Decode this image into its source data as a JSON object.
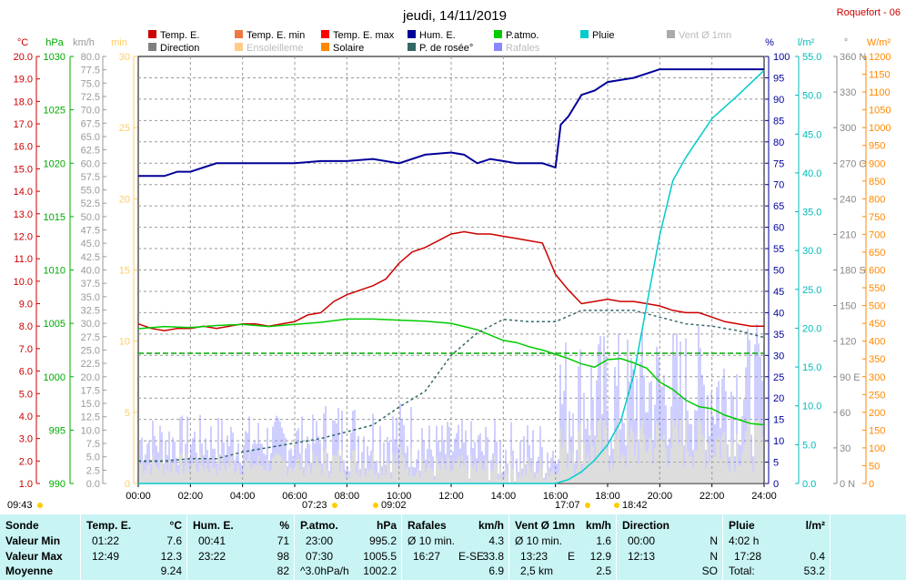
{
  "header": {
    "title": "jeudi, 14/11/2019",
    "station": "Roquefort - 06"
  },
  "legend": [
    {
      "label": "Temp. E.",
      "color": "#cc0000",
      "active": true
    },
    {
      "label": "Direction",
      "color": "#808080",
      "active": true
    },
    {
      "label": "Temp. E. min",
      "color": "#ee7744",
      "active": true
    },
    {
      "label": "Ensoleilleme",
      "color": "#ffcc88",
      "active": false
    },
    {
      "label": "Temp. E. max",
      "color": "#ff0000",
      "active": true
    },
    {
      "label": "Solaire",
      "color": "#ff8800",
      "active": true
    },
    {
      "label": "Hum. E.",
      "color": "#000099",
      "active": true
    },
    {
      "label": "P. de rosée°",
      "color": "#336666",
      "active": true
    },
    {
      "label": "P.atmo.",
      "color": "#00cc00",
      "active": true
    },
    {
      "label": "Rafales",
      "color": "#8888ff",
      "active": false
    },
    {
      "label": "Pluie",
      "color": "#00cccc",
      "active": true
    },
    {
      "label": "Vent Ø 1mn",
      "color": "#aaaaaa",
      "active": false
    }
  ],
  "axis_units": {
    "temp": "°C",
    "press": "hPa",
    "wind": "km/h",
    "sun": "min",
    "hum": "%",
    "rain": "l/m²",
    "dir": "°",
    "solar": "W/m²"
  },
  "chart_data": {
    "type": "line",
    "x_axis": {
      "ticks": [
        "00:00",
        "02:00",
        "04:00",
        "06:00",
        "08:00",
        "10:00",
        "12:00",
        "14:00",
        "16:00",
        "18:00",
        "20:00",
        "22:00",
        "24:00"
      ]
    },
    "y_axes": {
      "temp": {
        "ticks": [
          "1.0",
          "2.0",
          "3.0",
          "4.0",
          "5.0",
          "6.0",
          "7.0",
          "8.0",
          "9.0",
          "10.0",
          "11.0",
          "12.0",
          "13.0",
          "14.0",
          "15.0",
          "16.0",
          "17.0",
          "18.0",
          "19.0",
          "20.0"
        ],
        "range": [
          1,
          20
        ]
      },
      "press": {
        "ticks": [
          "990",
          "995",
          "1000",
          "1005",
          "1010",
          "1015",
          "1020",
          "1025",
          "1030"
        ],
        "range": [
          990,
          1030
        ]
      },
      "wind": {
        "ticks": [
          "0.0",
          "2.5",
          "5.0",
          "7.5",
          "10.0",
          "12.5",
          "15.0",
          "17.5",
          "20.0",
          "22.5",
          "25.0",
          "27.5",
          "30.0",
          "32.5",
          "35.0",
          "37.5",
          "40.0",
          "42.5",
          "45.0",
          "47.5",
          "50.0",
          "52.5",
          "55.0",
          "57.5",
          "60.0",
          "62.5",
          "65.0",
          "67.5",
          "70.0",
          "72.5",
          "75.0",
          "77.5",
          "80.0"
        ],
        "range": [
          0,
          80
        ]
      },
      "sun": {
        "ticks": [
          "0",
          "5",
          "10",
          "15",
          "20",
          "25",
          "30"
        ],
        "range": [
          0,
          30
        ]
      },
      "hum": {
        "ticks": [
          "0",
          "5",
          "10",
          "15",
          "20",
          "25",
          "30",
          "35",
          "40",
          "45",
          "50",
          "55",
          "60",
          "65",
          "70",
          "75",
          "80",
          "85",
          "90",
          "95",
          "100"
        ],
        "range": [
          0,
          100
        ]
      },
      "rain": {
        "ticks": [
          "0.0",
          "5.0",
          "10.0",
          "15.0",
          "20.0",
          "25.0",
          "30.0",
          "35.0",
          "40.0",
          "45.0",
          "50.0",
          "55.0"
        ],
        "range": [
          0,
          55
        ]
      },
      "dir": {
        "ticks": [
          "0",
          "30",
          "60",
          "90",
          "120",
          "150",
          "180",
          "210",
          "240",
          "270",
          "300",
          "330",
          "360"
        ],
        "labels": {
          "0": "N",
          "90": "E",
          "180": "S",
          "270": "O",
          "360": "N"
        },
        "range": [
          0,
          360
        ]
      },
      "solar": {
        "ticks": [
          "0",
          "50",
          "100",
          "150",
          "200",
          "250",
          "300",
          "350",
          "400",
          "450",
          "500",
          "550",
          "600",
          "650",
          "700",
          "750",
          "800",
          "850",
          "900",
          "950",
          "1000",
          "1050",
          "1100",
          "1150",
          "1200"
        ],
        "range": [
          0,
          1200
        ]
      }
    },
    "series": [
      {
        "name": "Temp. E.",
        "axis": "temp",
        "color": "#cc0000",
        "x": [
          0,
          0.5,
          1,
          1.5,
          2,
          2.5,
          3,
          3.5,
          4,
          4.5,
          5,
          5.5,
          6,
          6.5,
          7,
          7.5,
          8,
          8.5,
          9,
          9.5,
          10,
          10.5,
          11,
          11.5,
          12,
          12.5,
          13,
          13.5,
          14,
          14.5,
          15,
          15.5,
          16,
          16.5,
          17,
          17.5,
          18,
          18.5,
          19,
          19.5,
          20,
          20.5,
          21,
          21.5,
          22,
          22.5,
          23,
          23.5,
          24
        ],
        "y": [
          8.1,
          7.9,
          7.8,
          7.9,
          7.9,
          8.0,
          7.9,
          8.0,
          8.1,
          8.1,
          8.0,
          8.1,
          8.2,
          8.5,
          8.6,
          9.1,
          9.4,
          9.6,
          9.8,
          10.1,
          10.8,
          11.3,
          11.5,
          11.8,
          12.1,
          12.2,
          12.1,
          12.1,
          12.0,
          11.9,
          11.8,
          11.7,
          10.3,
          9.6,
          9.0,
          9.1,
          9.2,
          9.1,
          9.1,
          9.0,
          8.9,
          8.7,
          8.6,
          8.6,
          8.4,
          8.2,
          8.1,
          8.0,
          8.0
        ]
      },
      {
        "name": "Hum. E.",
        "axis": "hum",
        "color": "#000099",
        "x": [
          0,
          1,
          1.5,
          2,
          3,
          4,
          5,
          6,
          7,
          8,
          9,
          10,
          11,
          12,
          12.5,
          13,
          13.5,
          14,
          14.5,
          15,
          15.5,
          16,
          16.2,
          16.5,
          17,
          17.5,
          18,
          19,
          20,
          21,
          22,
          23,
          24
        ],
        "y": [
          72,
          72,
          73,
          73,
          75,
          75,
          75,
          75,
          75.5,
          75.5,
          76,
          75,
          77,
          77.5,
          77,
          75,
          76,
          75.5,
          75,
          75,
          75,
          74,
          84,
          86,
          91,
          92,
          94,
          95,
          97,
          97,
          97,
          97,
          97
        ]
      },
      {
        "name": "P.atmo.",
        "axis": "press",
        "color": "#00cc00",
        "x": [
          0,
          1,
          2,
          3,
          4,
          5,
          6,
          7,
          8,
          9,
          10,
          11,
          12,
          13,
          14,
          14.5,
          15,
          15.5,
          16,
          16.5,
          17,
          17.5,
          18,
          18.5,
          19,
          19.5,
          20,
          20.5,
          21,
          21.5,
          22,
          22.5,
          23,
          23.5,
          24
        ],
        "y": [
          1004.5,
          1004.7,
          1004.6,
          1004.8,
          1004.9,
          1004.7,
          1004.9,
          1005.1,
          1005.4,
          1005.4,
          1005.3,
          1005.2,
          1005.0,
          1004.4,
          1003.4,
          1003.2,
          1002.8,
          1002.5,
          1002.1,
          1001.7,
          1001.2,
          1000.9,
          1001.6,
          1001.7,
          1001.3,
          1000.8,
          999.5,
          998.8,
          997.8,
          997.2,
          997.0,
          996.4,
          996.0,
          995.6,
          995.5
        ]
      },
      {
        "name": "P. de rosée°",
        "axis": "temp",
        "color": "#336666",
        "dashed": true,
        "x": [
          0,
          1,
          2,
          3,
          4,
          5,
          6,
          7,
          8,
          9,
          10,
          11,
          12,
          13,
          14,
          15,
          16,
          17,
          18,
          19,
          20,
          21,
          22,
          23,
          24
        ],
        "y": [
          2.0,
          2.0,
          2.1,
          2.1,
          2.4,
          2.6,
          2.8,
          3.0,
          3.3,
          3.6,
          4.4,
          5.1,
          6.7,
          7.7,
          8.3,
          8.2,
          8.2,
          8.7,
          8.7,
          8.7,
          8.4,
          8.1,
          8.0,
          7.8,
          7.5
        ]
      },
      {
        "name": "Pluie",
        "axis": "rain",
        "color": "#00cccc",
        "x": [
          0,
          16,
          16.5,
          17,
          17.5,
          18,
          18.5,
          19,
          19.5,
          20,
          20.5,
          21,
          22,
          23,
          24
        ],
        "y": [
          0,
          0,
          0.5,
          1.5,
          3,
          5,
          8,
          14,
          23,
          32,
          39,
          42,
          47,
          50,
          53.2
        ]
      }
    ]
  },
  "markers": [
    {
      "label": "09:43",
      "color": "#ffcc00"
    },
    {
      "label": "07:23",
      "color": "#ffcc00"
    },
    {
      "label": "09:02",
      "color": "#ffcc00"
    },
    {
      "label": "17:07",
      "color": "#ffcc00"
    },
    {
      "label": "18:42",
      "color": "#ffcc00"
    }
  ],
  "footer": {
    "sonde": {
      "h": "Sonde",
      "min": "Valeur Min",
      "max": "Valeur Max",
      "avg": "Moyenne"
    },
    "temp": {
      "h": "Temp. E.",
      "u": "°C",
      "min_t": "01:22",
      "min_v": "7.6",
      "max_t": "12:49",
      "max_v": "12.3",
      "avg": "9.24"
    },
    "hum": {
      "h": "Hum. E.",
      "u": "%",
      "min_t": "00:41",
      "min_v": "71",
      "max_t": "23:22",
      "max_v": "98",
      "avg": "82"
    },
    "press": {
      "h": "P.atmo.",
      "u": "hPa",
      "min_t": "23:00",
      "min_v": "995.2",
      "max_t": "07:30",
      "max_v": "1005.5",
      "avg_l": "^3.0hPa/h",
      "avg": "1002.2"
    },
    "gust": {
      "h": "Rafales",
      "u": "km/h",
      "min_t": "Ø 10 min.",
      "min_v": "4.3",
      "max_t": "16:27",
      "max_d": "E-SE",
      "max_v": "33.8",
      "avg": "6.9"
    },
    "wind": {
      "h": "Vent Ø 1mn",
      "u": "km/h",
      "min_t": "Ø 10 min.",
      "min_v": "1.6",
      "max_t": "13:23",
      "max_d": "E",
      "max_v": "12.9",
      "avg_l": "2,5 km",
      "avg": "2.5"
    },
    "dir": {
      "h": "Direction",
      "min_t": "00:00",
      "min_v": "N",
      "max_t": "12:13",
      "max_v": "N",
      "avg": "SO"
    },
    "rain": {
      "h": "Pluie",
      "u": "l/m²",
      "min_t": "4:02 h",
      "max_t": "17:28",
      "max_v": "0.4",
      "avg_l": "Total:",
      "avg": "53.2"
    }
  }
}
